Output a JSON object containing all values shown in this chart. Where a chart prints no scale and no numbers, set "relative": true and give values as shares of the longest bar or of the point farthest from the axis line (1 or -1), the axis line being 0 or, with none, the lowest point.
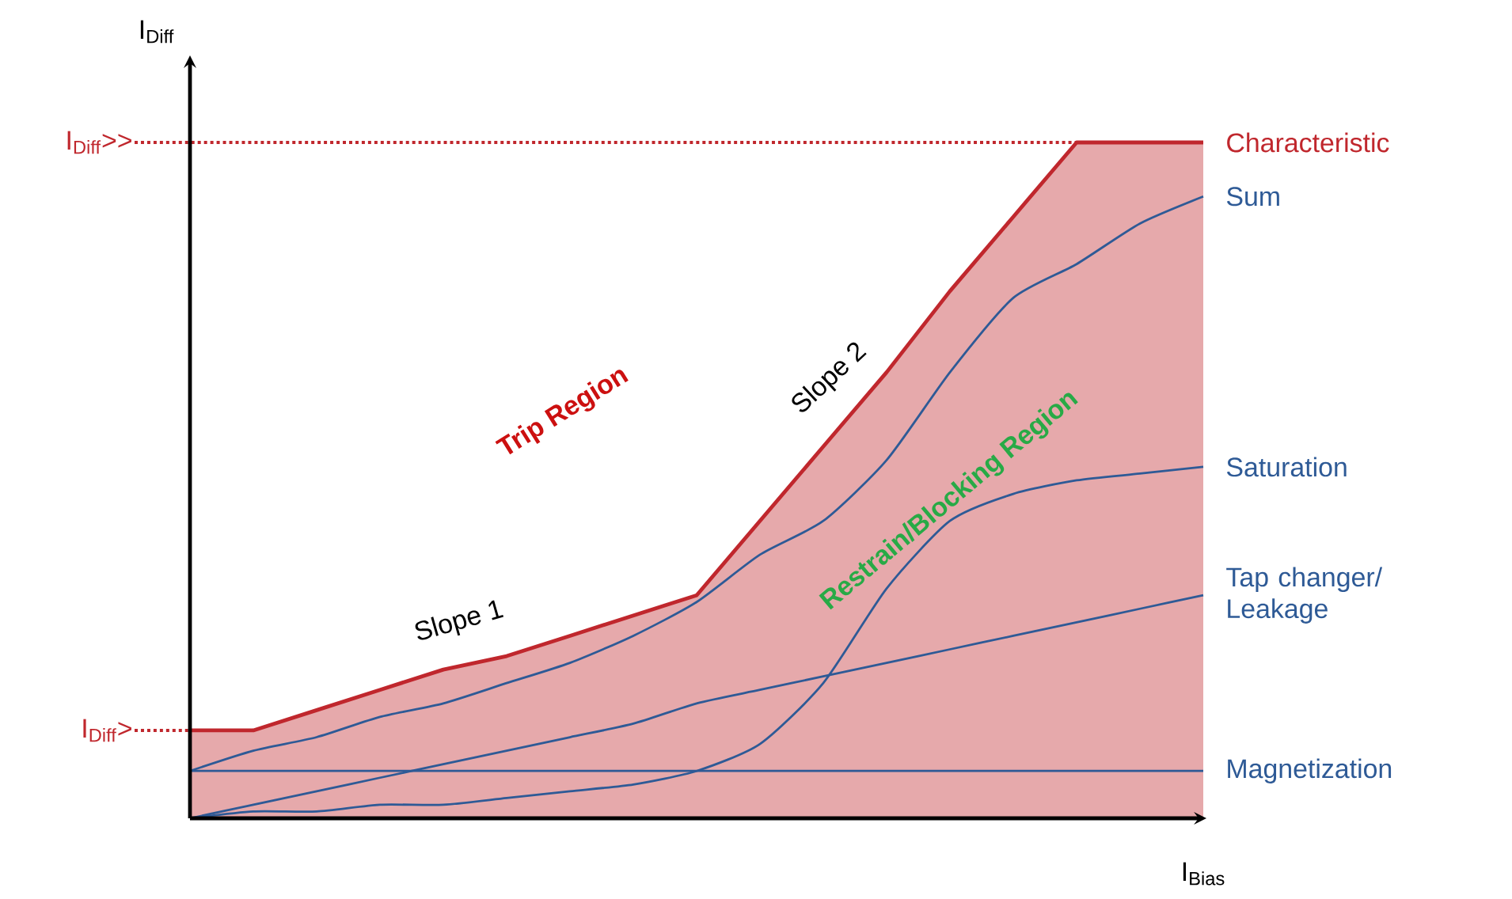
{
  "chart_data": {
    "type": "line",
    "relative": true,
    "legend": false,
    "xlabel": "I$_{Bias}$",
    "ylabel": "I$_{Diff}$",
    "categories": [
      null,
      null,
      null,
      null,
      null,
      null,
      null,
      null,
      null,
      null,
      null,
      null,
      null,
      null,
      null,
      null,
      null
    ],
    "series": [
      {
        "name": "Characteristic",
        "type": "area",
        "color": "#c0272d",
        "values": [
          0.13,
          0.13,
          0.16,
          0.19,
          0.22,
          0.24,
          0.27,
          0.3,
          0.33,
          0.44,
          0.55,
          0.66,
          0.78,
          0.89,
          1,
          1,
          1
        ]
      },
      {
        "name": "Sum",
        "color": "#2e5a96",
        "values": [
          0.07,
          0.1,
          0.12,
          0.15,
          0.17,
          0.2,
          0.23,
          0.27,
          0.32,
          0.39,
          0.44,
          0.53,
          0.66,
          0.77,
          0.82,
          0.88,
          0.92
        ]
      },
      {
        "name": "Saturation",
        "color": "#2e5a96",
        "values": [
          0,
          0.01,
          0.01,
          0.02,
          0.02,
          0.03,
          0.04,
          0.05,
          0.07,
          0.11,
          0.2,
          0.34,
          0.44,
          0.48,
          0.5,
          0.51,
          0.52
        ]
      },
      {
        "name": "Tap changer/ Leakage",
        "color": "#2e5a96",
        "values": [
          0,
          0.02,
          0.04,
          0.06,
          0.08,
          0.1,
          0.12,
          0.14,
          0.17,
          0.19,
          0.21,
          0.23,
          0.25,
          0.27,
          0.29,
          0.31,
          0.33
        ]
      },
      {
        "name": "Magnetization",
        "color": "#2e5a96",
        "values": [
          0.07,
          0.07,
          0.07,
          0.07,
          0.07,
          0.07,
          0.07,
          0.07,
          0.07,
          0.07,
          0.07,
          0.07,
          0.07,
          0.07,
          0.07,
          0.07,
          0.07
        ]
      }
    ],
    "ref_lines": [
      {
        "axis": "y",
        "value": 1,
        "label": "I$_{Diff}$>>",
        "color": "#c0272d",
        "line_style": "dotted"
      },
      {
        "axis": "y",
        "value": 0.13,
        "label": "I$_{Diff}$>",
        "color": "#c0272d",
        "line_style": "dotted"
      }
    ],
    "annotations": [
      "Trip Region",
      "Slope 1",
      "Slope 2",
      "Restrain/Blocking Region"
    ]
  }
}
